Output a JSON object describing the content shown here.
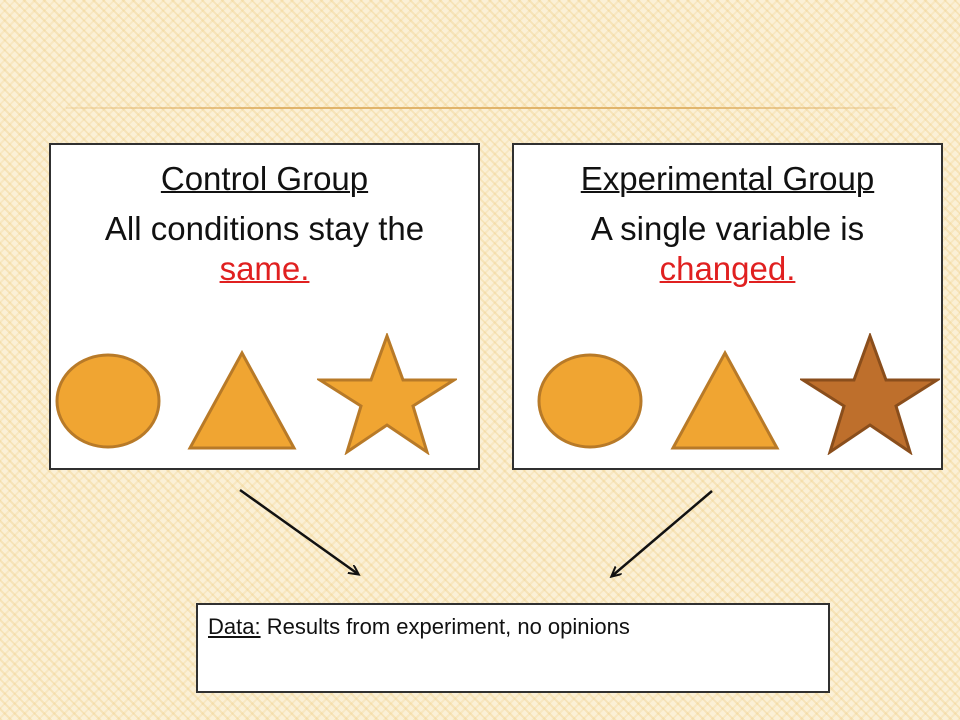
{
  "control_group": {
    "title": "Control Group",
    "description": "All conditions stay the",
    "highlight": "same.",
    "shapes": [
      "circle",
      "triangle",
      "star"
    ]
  },
  "experimental_group": {
    "title": "Experimental Group",
    "description": "A single variable is",
    "highlight": "changed.",
    "shapes": [
      "circle",
      "triangle",
      "star"
    ]
  },
  "data_box": {
    "label": "Data:",
    "text": " Results from experiment, no opinions"
  },
  "colors": {
    "shape_fill": "#f0a532",
    "shape_stroke": "#b87a28",
    "changed_star_fill": "#be6f2c",
    "changed_star_stroke": "#8a4e1c",
    "highlight": "#e02020",
    "arrow": "#111111"
  }
}
